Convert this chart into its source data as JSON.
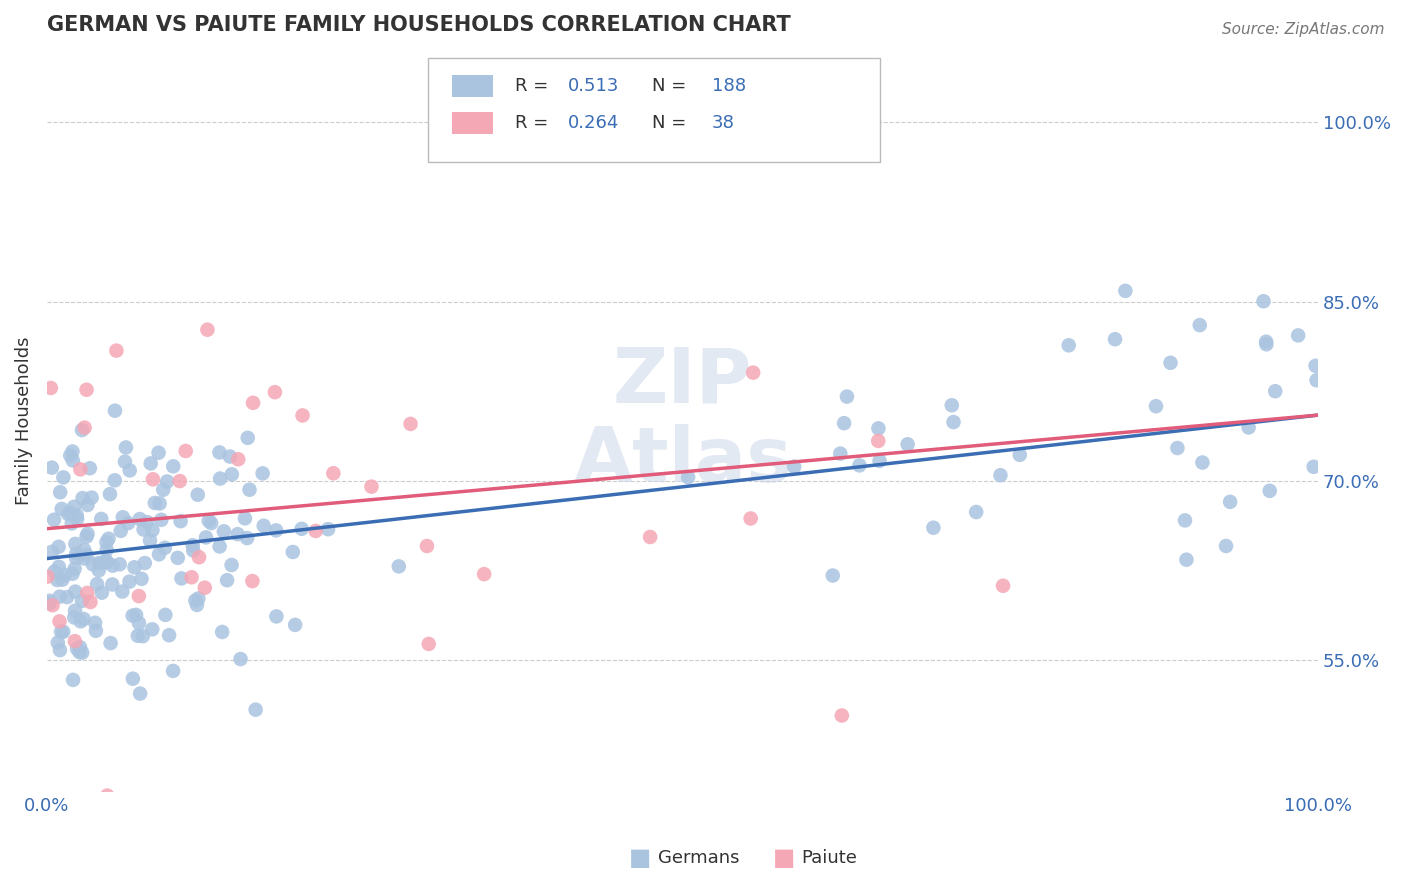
{
  "title": "GERMAN VS PAIUTE FAMILY HOUSEHOLDS CORRELATION CHART",
  "source_text": "Source: ZipAtlas.com",
  "ylabel": "Family Households",
  "xtick_labels": [
    "0.0%",
    "100.0%"
  ],
  "xlim": [
    0.0,
    1.0
  ],
  "ylim": [
    0.44,
    1.06
  ],
  "yticks": [
    0.55,
    0.7,
    0.85,
    1.0
  ],
  "ytick_labels": [
    "55.0%",
    "70.0%",
    "85.0%",
    "100.0%"
  ],
  "german_R": 0.513,
  "german_N": 188,
  "paiute_R": 0.264,
  "paiute_N": 38,
  "german_color": "#aac4e0",
  "paiute_color": "#f4a7b5",
  "german_line_color": "#3b6db5",
  "paiute_line_color": "#e05c7a",
  "legend_label_german": "Germans",
  "legend_label_paiute": "Paiute",
  "watermark": "ZIP\nAtlas",
  "background_color": "#ffffff",
  "title_color": "#333333",
  "axis_label_color": "#333333",
  "tick_color": "#3b6db5",
  "grid_color": "#cccccc",
  "source_color": "#777777",
  "legend_text_color": "#333333",
  "seed": 99
}
